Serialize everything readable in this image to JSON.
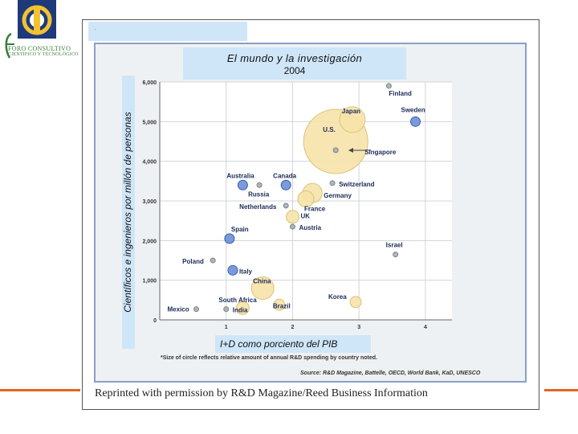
{
  "header": {
    "small_text": ".",
    "logo_line1": "FORO CONSULTIVO",
    "logo_line2": "CIENTÍFICO Y TECNOLÓGICO"
  },
  "chart_data": {
    "type": "scatter",
    "title": "El mundo y la investigación",
    "subtitle": "2004",
    "xlabel": "I+D como porciento del PIB",
    "ylabel": "Científicos e ingenieros por millón de personas",
    "xlim": [
      0,
      4.4
    ],
    "ylim": [
      0,
      6000
    ],
    "x_ticks": [
      "1",
      "2",
      "3",
      "4"
    ],
    "y_ticks": [
      "0",
      "1,000",
      "2,000",
      "3,000",
      "4,000",
      "5,000",
      "6,000"
    ],
    "grid": true,
    "points": [
      {
        "label": "Finland",
        "x": 3.45,
        "y": 5900,
        "size": 3,
        "color": "#a9aeb3"
      },
      {
        "label": "Sweden",
        "x": 3.85,
        "y": 5000,
        "size": 6,
        "color": "#6b8fd8"
      },
      {
        "label": "Japan",
        "x": 2.9,
        "y": 5050,
        "size": 16,
        "color": "#f6e3a8"
      },
      {
        "label": "U.S.",
        "x": 2.65,
        "y": 4500,
        "size": 40,
        "color": "#f6e3a8"
      },
      {
        "label": "Singapore",
        "x": 2.65,
        "y": 4280,
        "size": 3,
        "color": "#a9aeb3"
      },
      {
        "label": "Switzerland",
        "x": 2.6,
        "y": 3450,
        "size": 3,
        "color": "#a9aeb3"
      },
      {
        "label": "Australia",
        "x": 1.25,
        "y": 3400,
        "size": 6,
        "color": "#6b8fd8"
      },
      {
        "label": "Canada",
        "x": 1.9,
        "y": 3400,
        "size": 6,
        "color": "#6b8fd8"
      },
      {
        "label": "Russia",
        "x": 1.5,
        "y": 3400,
        "size": 3,
        "color": "#a9aeb3"
      },
      {
        "label": "Germany",
        "x": 2.3,
        "y": 3200,
        "size": 12,
        "color": "#f6e3a8"
      },
      {
        "label": "France",
        "x": 2.2,
        "y": 3050,
        "size": 10,
        "color": "#f6e3a8"
      },
      {
        "label": "Netherlands",
        "x": 1.9,
        "y": 2880,
        "size": 3,
        "color": "#a9aeb3"
      },
      {
        "label": "UK",
        "x": 2.0,
        "y": 2600,
        "size": 8,
        "color": "#f6e3a8"
      },
      {
        "label": "Austria",
        "x": 2.0,
        "y": 2350,
        "size": 3,
        "color": "#a9aeb3"
      },
      {
        "label": "Spain",
        "x": 1.05,
        "y": 2050,
        "size": 6,
        "color": "#6b8fd8"
      },
      {
        "label": "Israel",
        "x": 3.55,
        "y": 1650,
        "size": 3,
        "color": "#a9aeb3"
      },
      {
        "label": "Poland",
        "x": 0.8,
        "y": 1500,
        "size": 3,
        "color": "#a9aeb3"
      },
      {
        "label": "Italy",
        "x": 1.1,
        "y": 1250,
        "size": 6,
        "color": "#6b8fd8"
      },
      {
        "label": "China",
        "x": 1.55,
        "y": 800,
        "size": 14,
        "color": "#f6e3a8"
      },
      {
        "label": "Korea",
        "x": 2.95,
        "y": 450,
        "size": 7,
        "color": "#f6e3a8"
      },
      {
        "label": "South Africa",
        "x": 1.25,
        "y": 300,
        "size": 8,
        "color": "#f6e3a8"
      },
      {
        "label": "Brazil",
        "x": 1.8,
        "y": 380,
        "size": 7,
        "color": "#f6e3a8"
      },
      {
        "label": "Mexico",
        "x": 0.55,
        "y": 270,
        "size": 3,
        "color": "#a9aeb3"
      },
      {
        "label": "India",
        "x": 1.0,
        "y": 270,
        "size": 3,
        "color": "#a9aeb3"
      }
    ],
    "annotations": {
      "note_size": "*Size of circle reflects relative amount of annual R&D spending by country noted.",
      "source": "Source: R&D Magazine, Battelle, OECD, World Bank, KaD, UNESCO"
    }
  },
  "footer": {
    "reprint": "Reprinted with permission by R&D Magazine/Reed Business Information"
  },
  "colors": {
    "accent_orange": "#e2651f",
    "highlight_blue": "#cfe6f8",
    "frame_blue": "#8aa0c6"
  }
}
